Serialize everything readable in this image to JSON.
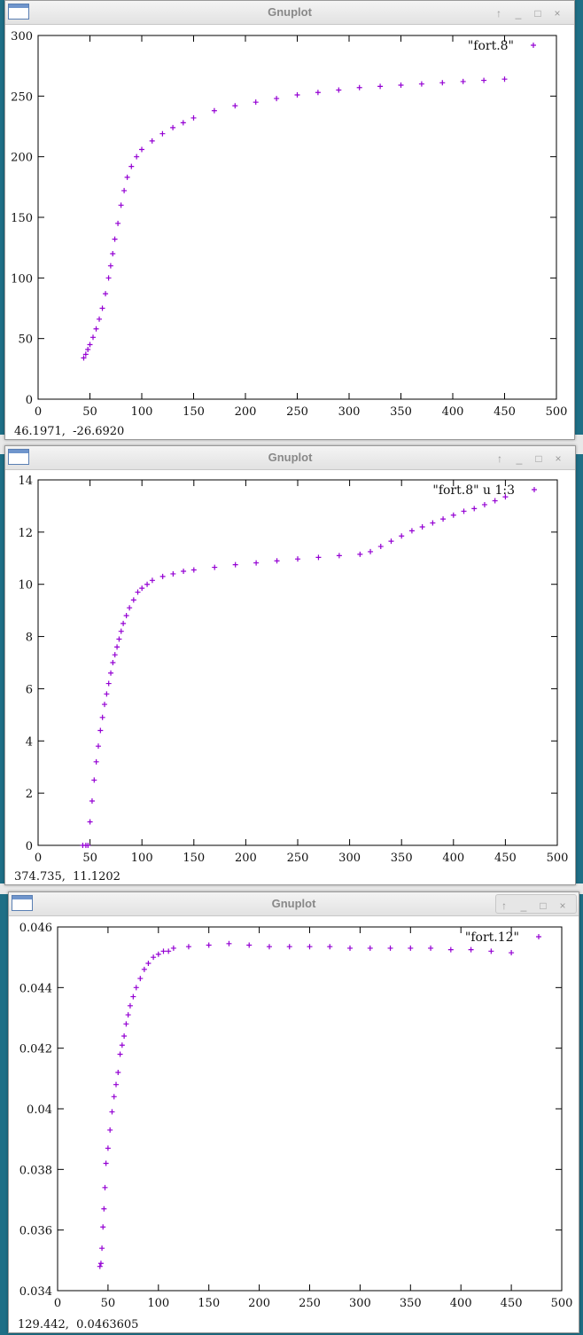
{
  "windows": [
    {
      "title": "Gnuplot",
      "status": "46.1971,  -26.6920",
      "controls": [
        "↑",
        "_",
        "□",
        "×"
      ],
      "chart_data": {
        "type": "scatter",
        "title": "",
        "xlabel": "",
        "ylabel": "",
        "xlim": [
          0,
          500
        ],
        "ylim": [
          0,
          300
        ],
        "xticks": [
          "0",
          "50",
          "100",
          "150",
          "200",
          "250",
          "300",
          "350",
          "400",
          "450",
          "500"
        ],
        "yticks": [
          "0",
          "50",
          "100",
          "150",
          "200",
          "250",
          "300"
        ],
        "legend": "top-right",
        "grid": false,
        "point_color": "#9400d3",
        "series": [
          {
            "name": "\"fort.8\"",
            "points": [
              [
                44,
                34
              ],
              [
                46,
                37
              ],
              [
                48,
                41
              ],
              [
                50,
                45
              ],
              [
                53,
                51
              ],
              [
                56,
                58
              ],
              [
                59,
                66
              ],
              [
                62,
                75
              ],
              [
                65,
                87
              ],
              [
                68,
                100
              ],
              [
                70,
                110
              ],
              [
                72,
                120
              ],
              [
                74,
                132
              ],
              [
                77,
                145
              ],
              [
                80,
                160
              ],
              [
                83,
                172
              ],
              [
                86,
                183
              ],
              [
                90,
                192
              ],
              [
                95,
                200
              ],
              [
                100,
                206
              ],
              [
                110,
                213
              ],
              [
                120,
                219
              ],
              [
                130,
                224
              ],
              [
                140,
                228
              ],
              [
                150,
                232
              ],
              [
                170,
                238
              ],
              [
                190,
                242
              ],
              [
                210,
                245
              ],
              [
                230,
                248
              ],
              [
                250,
                251
              ],
              [
                270,
                253
              ],
              [
                290,
                255
              ],
              [
                310,
                257
              ],
              [
                330,
                258
              ],
              [
                350,
                259
              ],
              [
                370,
                260
              ],
              [
                390,
                261
              ],
              [
                410,
                262
              ],
              [
                430,
                263
              ],
              [
                450,
                264
              ]
            ]
          }
        ]
      }
    },
    {
      "title": "Gnuplot",
      "status": "374.735,  11.1202",
      "controls": [
        "↑",
        "_",
        "□",
        "×"
      ],
      "chart_data": {
        "type": "scatter",
        "title": "",
        "xlabel": "",
        "ylabel": "",
        "xlim": [
          0,
          500
        ],
        "ylim": [
          0,
          14
        ],
        "xticks": [
          "0",
          "50",
          "100",
          "150",
          "200",
          "250",
          "300",
          "350",
          "400",
          "450",
          "500"
        ],
        "yticks": [
          "0",
          "2",
          "4",
          "6",
          "8",
          "10",
          "12",
          "14"
        ],
        "legend": "top-right",
        "grid": false,
        "point_color": "#9400d3",
        "series": [
          {
            "name": "\"fort.8\" u 1:3",
            "points": [
              [
                43,
                0
              ],
              [
                46,
                0
              ],
              [
                48,
                0
              ],
              [
                50,
                0.9
              ],
              [
                52,
                1.7
              ],
              [
                54,
                2.5
              ],
              [
                56,
                3.2
              ],
              [
                58,
                3.8
              ],
              [
                60,
                4.4
              ],
              [
                62,
                4.9
              ],
              [
                64,
                5.4
              ],
              [
                66,
                5.8
              ],
              [
                68,
                6.2
              ],
              [
                70,
                6.6
              ],
              [
                72,
                7.0
              ],
              [
                74,
                7.3
              ],
              [
                76,
                7.6
              ],
              [
                78,
                7.9
              ],
              [
                80,
                8.2
              ],
              [
                82,
                8.5
              ],
              [
                85,
                8.8
              ],
              [
                88,
                9.1
              ],
              [
                92,
                9.4
              ],
              [
                96,
                9.7
              ],
              [
                100,
                9.85
              ],
              [
                105,
                10.0
              ],
              [
                110,
                10.15
              ],
              [
                120,
                10.3
              ],
              [
                130,
                10.4
              ],
              [
                140,
                10.5
              ],
              [
                150,
                10.55
              ],
              [
                170,
                10.65
              ],
              [
                190,
                10.75
              ],
              [
                210,
                10.82
              ],
              [
                230,
                10.9
              ],
              [
                250,
                10.97
              ],
              [
                270,
                11.03
              ],
              [
                290,
                11.1
              ],
              [
                310,
                11.15
              ],
              [
                320,
                11.25
              ],
              [
                330,
                11.45
              ],
              [
                340,
                11.65
              ],
              [
                350,
                11.85
              ],
              [
                360,
                12.05
              ],
              [
                370,
                12.2
              ],
              [
                380,
                12.35
              ],
              [
                390,
                12.5
              ],
              [
                400,
                12.65
              ],
              [
                410,
                12.8
              ],
              [
                420,
                12.9
              ],
              [
                430,
                13.05
              ],
              [
                440,
                13.2
              ],
              [
                450,
                13.35
              ]
            ]
          }
        ]
      }
    },
    {
      "title": "Gnuplot",
      "status": "129.442,  0.0463605",
      "controls": [
        "↑",
        "_",
        "□",
        "×"
      ],
      "chart_data": {
        "type": "scatter",
        "title": "",
        "xlabel": "",
        "ylabel": "",
        "xlim": [
          0,
          500
        ],
        "ylim": [
          0.034,
          0.046
        ],
        "xticks": [
          "0",
          "50",
          "100",
          "150",
          "200",
          "250",
          "300",
          "350",
          "400",
          "450",
          "500"
        ],
        "yticks": [
          "0.034",
          "0.036",
          "0.038",
          "0.04",
          "0.042",
          "0.044",
          "0.046"
        ],
        "legend": "top-right",
        "grid": false,
        "point_color": "#9400d3",
        "series": [
          {
            "name": "\"fort.12\"",
            "points": [
              [
                42,
                0.0348
              ],
              [
                43,
                0.0349
              ],
              [
                44,
                0.0354
              ],
              [
                45,
                0.0361
              ],
              [
                46,
                0.0367
              ],
              [
                47,
                0.0374
              ],
              [
                48,
                0.0382
              ],
              [
                50,
                0.0387
              ],
              [
                52,
                0.0393
              ],
              [
                54,
                0.0399
              ],
              [
                56,
                0.0404
              ],
              [
                58,
                0.0408
              ],
              [
                60,
                0.0412
              ],
              [
                62,
                0.0418
              ],
              [
                64,
                0.0421
              ],
              [
                66,
                0.0424
              ],
              [
                68,
                0.0428
              ],
              [
                70,
                0.0431
              ],
              [
                72,
                0.0434
              ],
              [
                75,
                0.0437
              ],
              [
                78,
                0.044
              ],
              [
                82,
                0.0443
              ],
              [
                86,
                0.0446
              ],
              [
                90,
                0.0448
              ],
              [
                95,
                0.045
              ],
              [
                100,
                0.0451
              ],
              [
                105,
                0.0452
              ],
              [
                110,
                0.0452
              ],
              [
                115,
                0.0453
              ],
              [
                130,
                0.04535
              ],
              [
                150,
                0.0454
              ],
              [
                170,
                0.04545
              ],
              [
                190,
                0.0454
              ],
              [
                210,
                0.04535
              ],
              [
                230,
                0.04535
              ],
              [
                250,
                0.04535
              ],
              [
                270,
                0.04535
              ],
              [
                290,
                0.0453
              ],
              [
                310,
                0.0453
              ],
              [
                330,
                0.0453
              ],
              [
                350,
                0.0453
              ],
              [
                370,
                0.0453
              ],
              [
                390,
                0.04525
              ],
              [
                410,
                0.04525
              ],
              [
                430,
                0.0452
              ],
              [
                450,
                0.04515
              ]
            ]
          }
        ]
      }
    }
  ]
}
